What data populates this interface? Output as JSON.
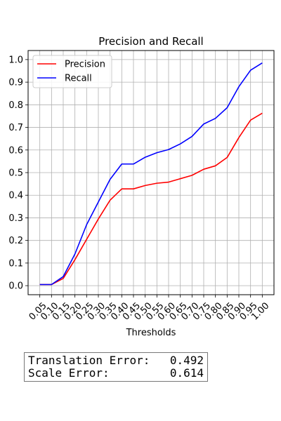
{
  "chart_data": {
    "type": "line",
    "title": "Precision and Recall",
    "xlabel": "Thresholds",
    "ylabel": "",
    "x": [
      0.05,
      0.1,
      0.15,
      0.2,
      0.25,
      0.3,
      0.35,
      0.4,
      0.45,
      0.5,
      0.55,
      0.6,
      0.65,
      0.7,
      0.75,
      0.8,
      0.85,
      0.9,
      0.95,
      1.0
    ],
    "x_tick_labels": [
      "0.05",
      "0.10",
      "0.15",
      "0.20",
      "0.25",
      "0.30",
      "0.35",
      "0.40",
      "0.45",
      "0.50",
      "0.55",
      "0.60",
      "0.65",
      "0.70",
      "0.75",
      "0.80",
      "0.85",
      "0.90",
      "0.95",
      "1.00"
    ],
    "y_ticks": [
      0.0,
      0.1,
      0.2,
      0.3,
      0.4,
      0.5,
      0.6,
      0.7,
      0.8,
      0.9,
      1.0
    ],
    "y_tick_labels": [
      "0.0",
      "0.1",
      "0.2",
      "0.3",
      "0.4",
      "0.5",
      "0.6",
      "0.7",
      "0.8",
      "0.9",
      "1.0"
    ],
    "ylim": [
      -0.04,
      1.04
    ],
    "grid": true,
    "legend_position": "top-left",
    "series": [
      {
        "name": "Precision",
        "color": "#ff0000",
        "values": [
          0.005,
          0.005,
          0.032,
          0.115,
          0.205,
          0.295,
          0.378,
          0.428,
          0.428,
          0.443,
          0.453,
          0.458,
          0.473,
          0.488,
          0.515,
          0.53,
          0.567,
          0.655,
          0.732,
          0.763
        ]
      },
      {
        "name": "Recall",
        "color": "#0000ff",
        "values": [
          0.005,
          0.005,
          0.04,
          0.14,
          0.27,
          0.37,
          0.47,
          0.538,
          0.538,
          0.568,
          0.588,
          0.602,
          0.627,
          0.66,
          0.715,
          0.74,
          0.787,
          0.88,
          0.953,
          0.985
        ]
      }
    ]
  },
  "metrics": [
    {
      "label": "Translation Error:",
      "value": "0.492"
    },
    {
      "label": "Scale Error:",
      "value": "0.614"
    }
  ]
}
